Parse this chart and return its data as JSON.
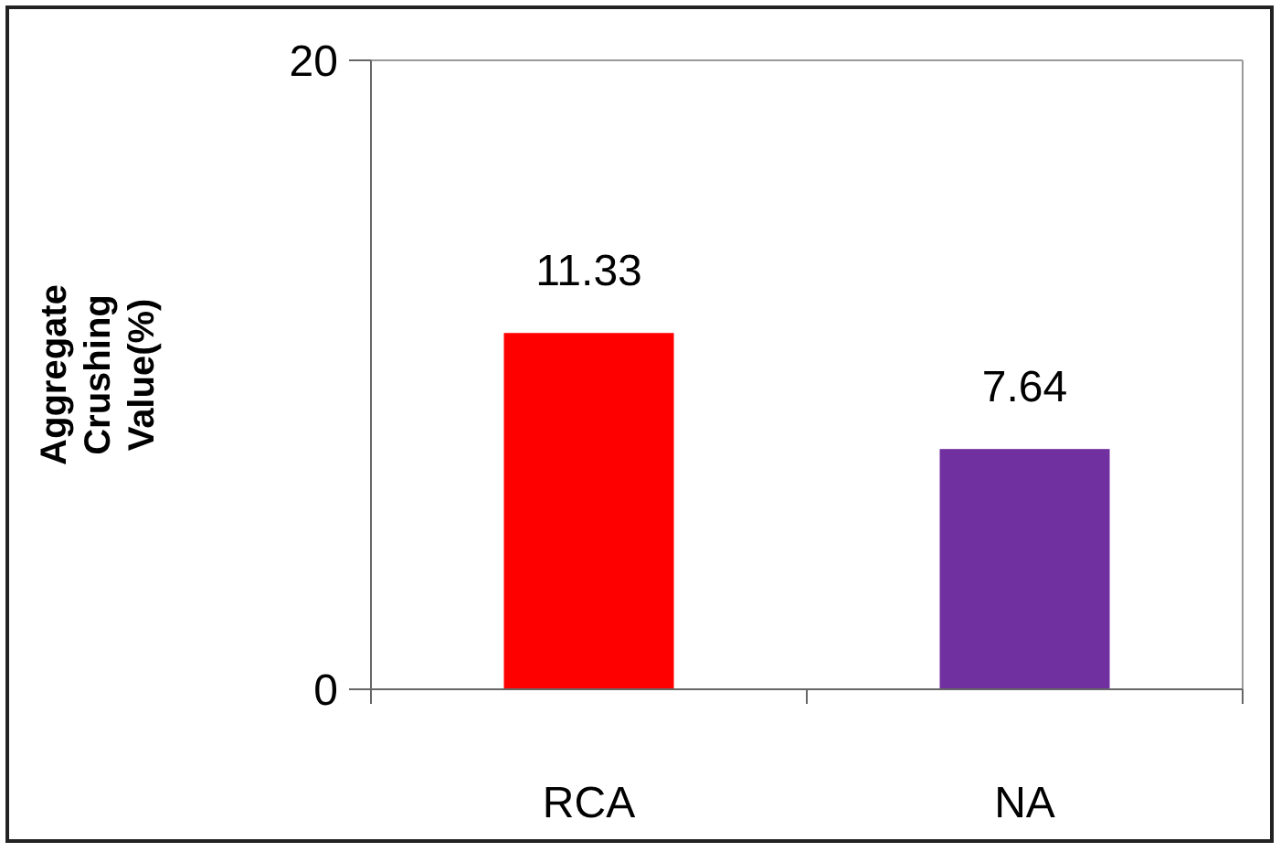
{
  "chart_data": {
    "type": "bar",
    "ylabel": "Aggregate\nCrushing\nValue(%)",
    "categories": [
      "RCA",
      "NA"
    ],
    "values": [
      11.33,
      7.64
    ],
    "colors": [
      "#ff0000",
      "#7030a0"
    ],
    "ylim": [
      0,
      20
    ],
    "yticks": [
      0,
      20
    ],
    "data_labels": true
  }
}
